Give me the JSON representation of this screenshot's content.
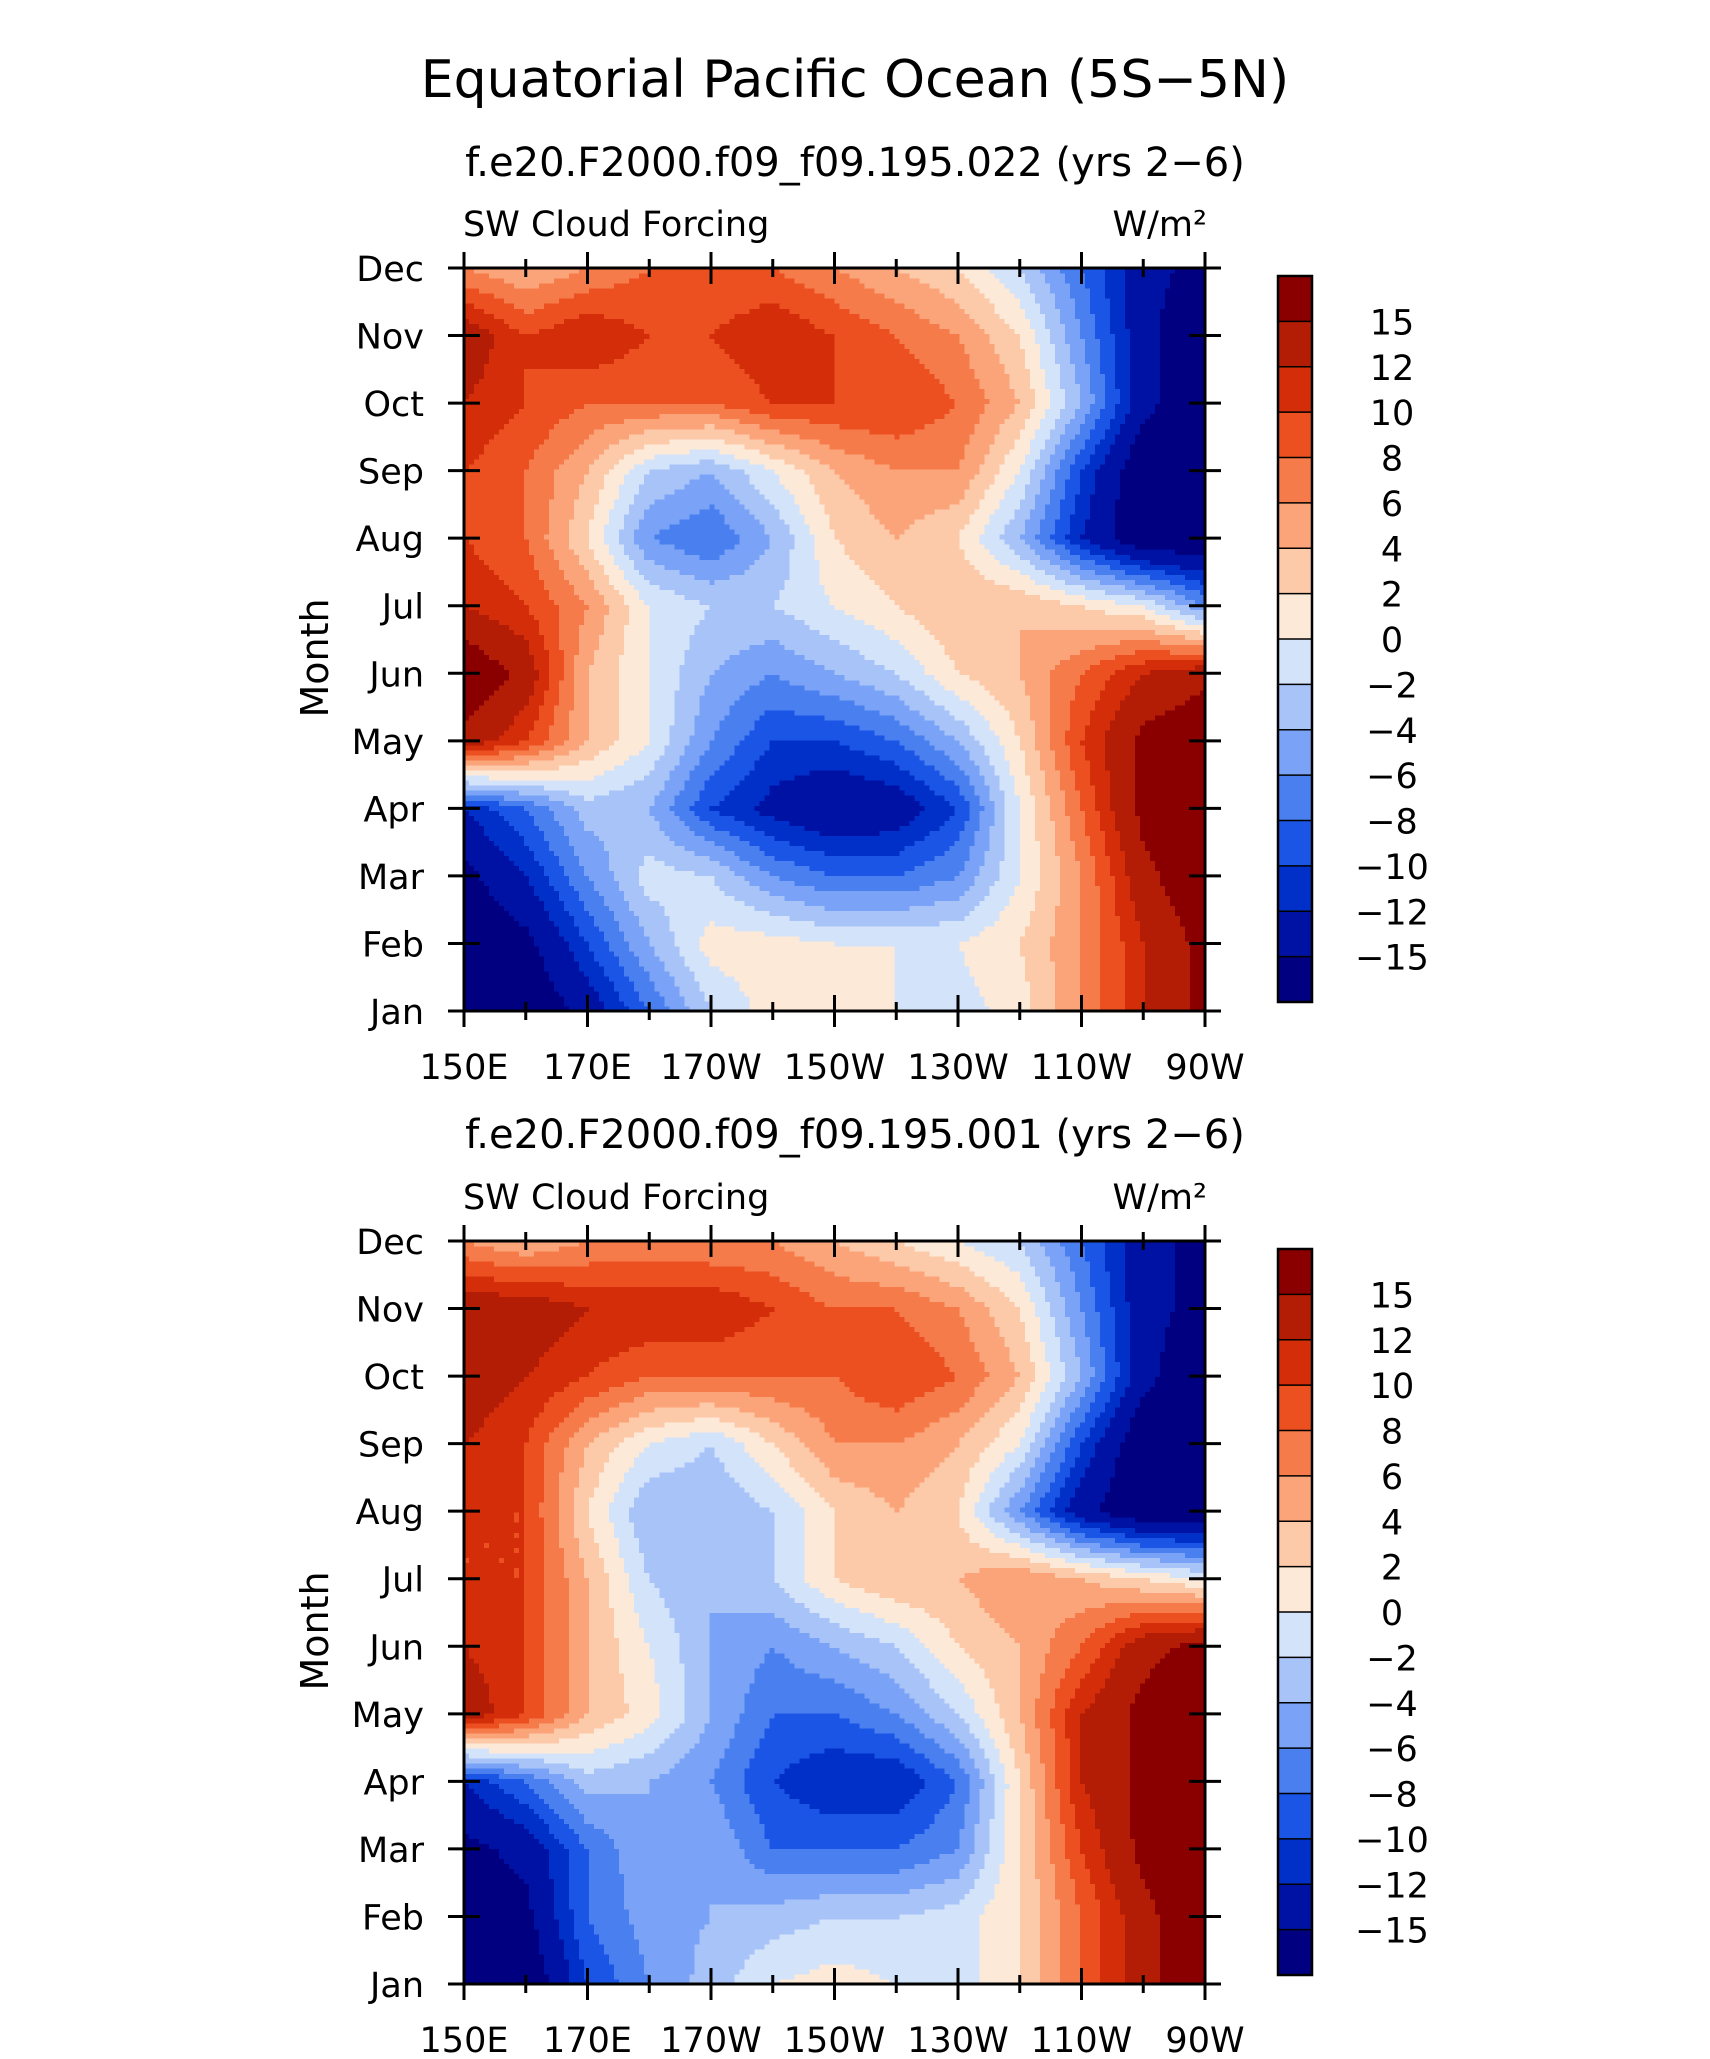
{
  "figure": {
    "title": "Equatorial Pacific Ocean (5S−5N)"
  },
  "colorbar": {
    "colors": [
      "#000080",
      "#0012a3",
      "#0030c8",
      "#1b55e6",
      "#4a7ff0",
      "#7aa3f7",
      "#a8c3f8",
      "#d3e3fa",
      "#fde9d8",
      "#fcc9a9",
      "#fba47a",
      "#f67b4b",
      "#ec5020",
      "#d32d0a",
      "#b31c05",
      "#8a0000"
    ],
    "labels": [
      "−15",
      "−12",
      "−10",
      "−8",
      "−6",
      "−4",
      "−2",
      "0",
      "2",
      "4",
      "6",
      "8",
      "10",
      "12",
      "15"
    ]
  },
  "chart_data": [
    {
      "type": "heatmap",
      "title": "f.e20.F2000.f09_f09.195.022 (yrs 2−6)",
      "variable": "SW Cloud Forcing",
      "units": "W/m²",
      "ylabel": "Month",
      "x_ticks": [
        "150E",
        "170E",
        "170W",
        "150W",
        "130W",
        "110W",
        "90W"
      ],
      "y_ticks": [
        "Jan",
        "Feb",
        "Mar",
        "Apr",
        "May",
        "Jun",
        "Jul",
        "Aug",
        "Sep",
        "Oct",
        "Nov",
        "Dec"
      ],
      "x_longitudes": [
        150,
        160,
        170,
        180,
        190,
        200,
        210,
        220,
        230,
        240,
        250,
        260,
        270
      ],
      "months": [
        "Jan",
        "Feb",
        "Mar",
        "Apr",
        "May",
        "Jun",
        "Jul",
        "Aug",
        "Sep",
        "Oct",
        "Nov",
        "Dec"
      ],
      "levels": [
        -15,
        -12,
        -10,
        -8,
        -6,
        -4,
        -2,
        0,
        2,
        4,
        6,
        8,
        10,
        12,
        15
      ],
      "values": [
        [
          -18,
          -18,
          -14,
          -8,
          -2,
          1,
          1,
          0,
          -1,
          1,
          6,
          12,
          16
        ],
        [
          -18,
          -16,
          -10,
          -4,
          1,
          1,
          0,
          0,
          0,
          2,
          6,
          12,
          16
        ],
        [
          -16,
          -12,
          -6,
          -1,
          -2,
          -6,
          -8,
          -8,
          -6,
          0,
          6,
          14,
          18
        ],
        [
          -12,
          -8,
          -3,
          -4,
          -10,
          -13,
          -15,
          -14,
          -10,
          0,
          8,
          16,
          18
        ],
        [
          14,
          10,
          4,
          0,
          -6,
          -10,
          -10,
          -8,
          -4,
          2,
          10,
          16,
          18
        ],
        [
          18,
          14,
          4,
          0,
          -4,
          -6,
          -4,
          -2,
          2,
          4,
          8,
          12,
          14
        ],
        [
          12,
          10,
          6,
          0,
          -2,
          -2,
          0,
          2,
          4,
          4,
          2,
          0,
          -6
        ],
        [
          10,
          8,
          2,
          -6,
          -8,
          -4,
          2,
          4,
          2,
          -4,
          -12,
          -18,
          -18
        ],
        [
          10,
          8,
          4,
          -2,
          -4,
          0,
          4,
          6,
          6,
          0,
          -10,
          -18,
          -18
        ],
        [
          12,
          10,
          8,
          8,
          8,
          10,
          10,
          10,
          8,
          4,
          -4,
          -14,
          -18
        ],
        [
          14,
          10,
          12,
          10,
          10,
          12,
          10,
          8,
          6,
          2,
          -6,
          -14,
          -18
        ],
        [
          6,
          4,
          6,
          8,
          8,
          8,
          6,
          4,
          2,
          -2,
          -8,
          -14,
          -16
        ]
      ]
    },
    {
      "type": "heatmap",
      "title": "f.e20.F2000.f09_f09.195.001 (yrs 2−6)",
      "variable": "SW Cloud Forcing",
      "units": "W/m²",
      "ylabel": "Month",
      "x_ticks": [
        "150E",
        "170E",
        "170W",
        "150W",
        "130W",
        "110W",
        "90W"
      ],
      "y_ticks": [
        "Jan",
        "Feb",
        "Mar",
        "Apr",
        "May",
        "Jun",
        "Jul",
        "Aug",
        "Sep",
        "Oct",
        "Nov",
        "Dec"
      ],
      "x_longitudes": [
        150,
        160,
        170,
        180,
        190,
        200,
        210,
        220,
        230,
        240,
        250,
        260,
        270
      ],
      "months": [
        "Jan",
        "Feb",
        "Mar",
        "Apr",
        "May",
        "Jun",
        "Jul",
        "Aug",
        "Sep",
        "Oct",
        "Nov",
        "Dec"
      ],
      "levels": [
        -15,
        -12,
        -10,
        -8,
        -6,
        -4,
        -2,
        0,
        2,
        4,
        6,
        8,
        10,
        12,
        15
      ],
      "values": [
        [
          -18,
          -18,
          -10,
          -6,
          -3,
          0,
          1,
          0,
          -1,
          2,
          8,
          14,
          18
        ],
        [
          -18,
          -16,
          -8,
          -5,
          -4,
          -3,
          -2,
          -2,
          -1,
          2,
          8,
          14,
          18
        ],
        [
          -16,
          -14,
          -8,
          -4,
          -4,
          -8,
          -8,
          -8,
          -6,
          2,
          10,
          16,
          18
        ],
        [
          -12,
          -8,
          -3,
          -4,
          -6,
          -10,
          -12,
          -12,
          -8,
          2,
          12,
          16,
          18
        ],
        [
          14,
          10,
          4,
          1,
          -4,
          -8,
          -8,
          -6,
          -2,
          4,
          12,
          16,
          18
        ],
        [
          12,
          10,
          4,
          0,
          -4,
          -6,
          -4,
          -2,
          2,
          4,
          8,
          14,
          16
        ],
        [
          10,
          10,
          4,
          -2,
          -4,
          -2,
          2,
          4,
          4,
          6,
          4,
          2,
          0
        ],
        [
          10,
          10,
          2,
          -4,
          -4,
          -2,
          2,
          4,
          2,
          -6,
          -14,
          -18,
          -18
        ],
        [
          12,
          10,
          4,
          0,
          -2,
          2,
          6,
          6,
          4,
          0,
          -10,
          -18,
          -18
        ],
        [
          14,
          12,
          10,
          8,
          8,
          8,
          8,
          10,
          8,
          4,
          -4,
          -14,
          -18
        ],
        [
          14,
          14,
          12,
          12,
          12,
          10,
          8,
          8,
          6,
          2,
          -6,
          -14,
          -16
        ],
        [
          6,
          4,
          6,
          6,
          6,
          6,
          4,
          2,
          0,
          -2,
          -8,
          -14,
          -16
        ]
      ]
    }
  ]
}
